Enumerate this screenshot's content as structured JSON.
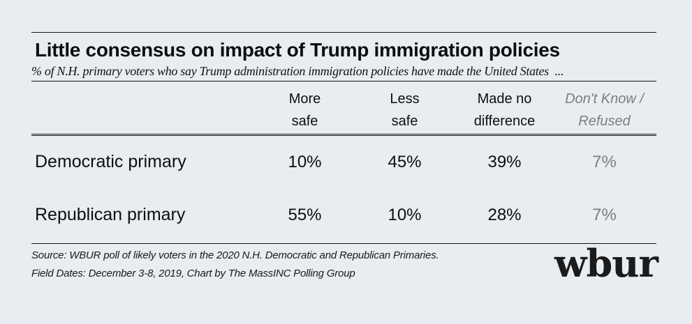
{
  "colors": {
    "background": "#e8edf2",
    "text": "#0e0e0e",
    "muted": "#7b7e82",
    "rule": "#141414"
  },
  "header": {
    "title": "Little consensus on impact of Trump immigration policies",
    "subtitle": "% of N.H. primary voters who say Trump administration immigration policies have made the United States ..."
  },
  "table": {
    "columns": [
      {
        "label": "More safe",
        "line1": "More",
        "line2": "safe",
        "muted": false
      },
      {
        "label": "Less safe",
        "line1": "Less",
        "line2": "safe",
        "muted": false
      },
      {
        "label": "Made no difference",
        "line1": "Made no",
        "line2": "difference",
        "muted": false
      },
      {
        "label": "Don't Know / Refused",
        "line1": "Don't Know /",
        "line2": "Refused",
        "muted": true
      }
    ],
    "rows": [
      {
        "label": "Democratic primary",
        "values": [
          "10%",
          "45%",
          "39%",
          "7%"
        ]
      },
      {
        "label": "Republican primary",
        "values": [
          "55%",
          "10%",
          "28%",
          "7%"
        ]
      }
    ]
  },
  "footer": {
    "source_line1": "Source: WBUR poll of likely voters in the 2020 N.H. Democratic and Republican Primaries.",
    "source_line2": "Field Dates: December 3-8, 2019, Chart by The MassINC Polling Group",
    "logo_text": "wbur"
  },
  "chart_data": {
    "type": "table",
    "title": "Little consensus on impact of Trump immigration policies",
    "subtitle": "% of N.H. primary voters who say Trump administration immigration policies have made the United States ...",
    "categories": [
      "More safe",
      "Less safe",
      "Made no difference",
      "Don't Know / Refused"
    ],
    "series": [
      {
        "name": "Democratic primary",
        "values": [
          10,
          45,
          39,
          7
        ]
      },
      {
        "name": "Republican primary",
        "values": [
          55,
          10,
          28,
          7
        ]
      }
    ],
    "unit": "%",
    "source": "WBUR poll of likely voters in the 2020 N.H. Democratic and Republican Primaries.",
    "field_dates": "December 3-8, 2019",
    "chart_by": "The MassINC Polling Group"
  }
}
